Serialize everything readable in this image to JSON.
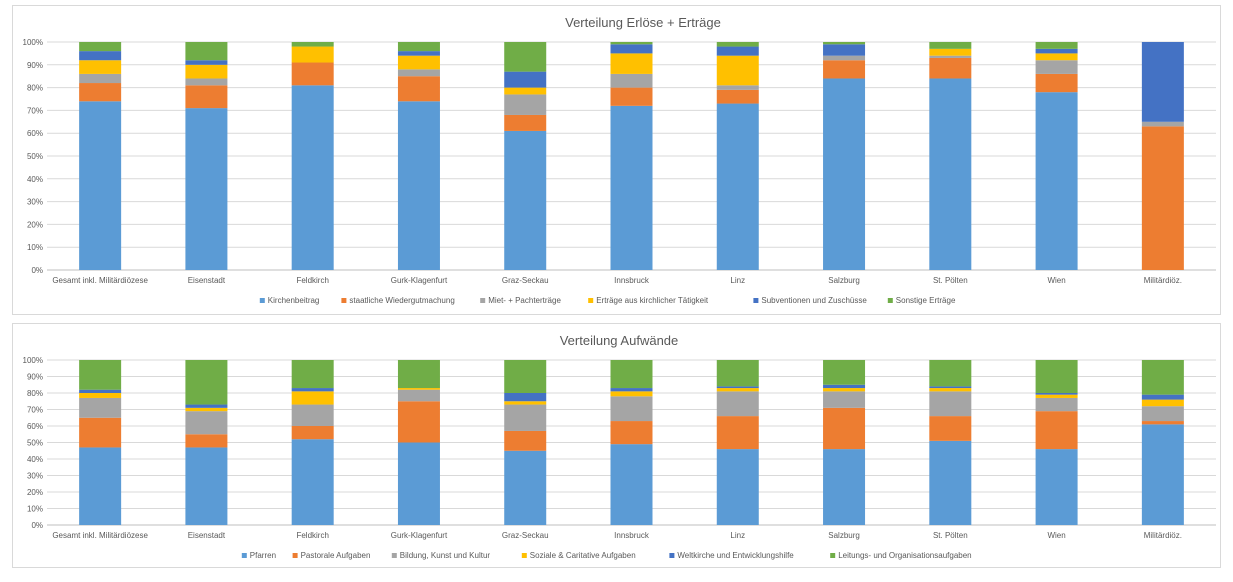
{
  "chart_data": [
    {
      "type": "bar",
      "stacked": "percent",
      "title": "Verteilung Erlöse + Erträge",
      "categories": [
        "Gesamt inkl. Militärdiözese",
        "Eisenstadt",
        "Feldkirch",
        "Gurk-Klagenfurt",
        "Graz-Seckau",
        "Innsbruck",
        "Linz",
        "Salzburg",
        "St. Pölten",
        "Wien",
        "Militärdiöz."
      ],
      "y_ticks": [
        "0%",
        "10%",
        "20%",
        "30%",
        "40%",
        "50%",
        "60%",
        "70%",
        "80%",
        "90%",
        "100%"
      ],
      "ylim": [
        0,
        100
      ],
      "grid": true,
      "legend_position": "bottom",
      "series": [
        {
          "name": "Kirchenbeitrag",
          "color": "#5b9bd5",
          "values": [
            74,
            71,
            81,
            74,
            61,
            72,
            73,
            84,
            84,
            78,
            0
          ]
        },
        {
          "name": "staatliche Wiedergutmachung",
          "color": "#ed7d31",
          "values": [
            8,
            10,
            10,
            11,
            7,
            8,
            6,
            8,
            9,
            8,
            63
          ]
        },
        {
          "name": "Miet- + Pachterträge",
          "color": "#a5a5a5",
          "values": [
            4,
            3,
            0,
            3,
            9,
            6,
            2,
            2,
            1,
            6,
            2
          ]
        },
        {
          "name": "Erträge aus kirchlicher Tätigkeit",
          "color": "#ffc000",
          "values": [
            6,
            6,
            7,
            6,
            3,
            9,
            13,
            0,
            3,
            3,
            0
          ]
        },
        {
          "name": "Subventionen und Zuschüsse",
          "color": "#4472c4",
          "values": [
            4,
            2,
            0,
            2,
            7,
            4,
            4,
            5,
            0,
            2,
            35
          ]
        },
        {
          "name": "Sonstige Erträge",
          "color": "#70ad47",
          "values": [
            4,
            8,
            2,
            4,
            13,
            1,
            2,
            1,
            3,
            3,
            0
          ]
        }
      ]
    },
    {
      "type": "bar",
      "stacked": "percent",
      "title": "Verteilung Aufwände",
      "categories": [
        "Gesamt inkl. Militärdiözese",
        "Eisenstadt",
        "Feldkirch",
        "Gurk-Klagenfurt",
        "Graz-Seckau",
        "Innsbruck",
        "Linz",
        "Salzburg",
        "St. Pölten",
        "Wien",
        "Militärdiöz."
      ],
      "y_ticks": [
        "0%",
        "10%",
        "20%",
        "30%",
        "40%",
        "50%",
        "60%",
        "70%",
        "80%",
        "90%",
        "100%"
      ],
      "ylim": [
        0,
        100
      ],
      "grid": true,
      "legend_position": "bottom",
      "series": [
        {
          "name": "Pfarren",
          "color": "#5b9bd5",
          "values": [
            47,
            47,
            52,
            50,
            45,
            49,
            46,
            46,
            51,
            46,
            61
          ]
        },
        {
          "name": "Pastorale Aufgaben",
          "color": "#ed7d31",
          "values": [
            18,
            8,
            8,
            25,
            12,
            14,
            20,
            25,
            15,
            23,
            2
          ]
        },
        {
          "name": "Bildung, Kunst und Kultur",
          "color": "#a5a5a5",
          "values": [
            12,
            14,
            13,
            7,
            16,
            15,
            15,
            10,
            15,
            8,
            9
          ]
        },
        {
          "name": "Soziale & Caritative Aufgaben",
          "color": "#ffc000",
          "values": [
            3,
            2,
            8,
            1,
            2,
            3,
            2,
            2,
            2,
            2,
            4
          ]
        },
        {
          "name": "Weltkirche und Entwicklungshilfe",
          "color": "#4472c4",
          "values": [
            2,
            2,
            2,
            0,
            5,
            2,
            1,
            2,
            1,
            1,
            3
          ]
        },
        {
          "name": "Leitungs- und Organisationsaufgaben",
          "color": "#70ad47",
          "values": [
            18,
            27,
            17,
            17,
            20,
            17,
            16,
            15,
            16,
            20,
            21
          ]
        }
      ]
    }
  ]
}
